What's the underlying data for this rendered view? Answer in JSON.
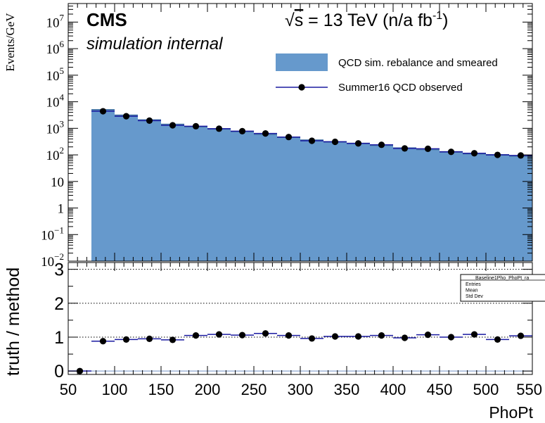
{
  "chart_data": [
    {
      "type": "bar",
      "ylabel": "Events/GeV",
      "y_scale": "log",
      "ylim": [
        0.01,
        50000000
      ],
      "xlim": [
        50,
        550
      ],
      "y_tick_labels": [
        {
          "value": 10000000,
          "base": "10",
          "exp": "7"
        },
        {
          "value": 1000000,
          "base": "10",
          "exp": "6"
        },
        {
          "value": 100000,
          "base": "10",
          "exp": "5"
        },
        {
          "value": 10000,
          "base": "10",
          "exp": "4"
        },
        {
          "value": 1000,
          "base": "10",
          "exp": "3"
        },
        {
          "value": 100,
          "base": "10",
          "exp": "2"
        },
        {
          "value": 10,
          "base": "10",
          "exp": ""
        },
        {
          "value": 1,
          "base": "1",
          "exp": ""
        },
        {
          "value": 0.1,
          "base": "10",
          "exp": "−1"
        },
        {
          "value": 0.01,
          "base": "10",
          "exp": "−2"
        }
      ],
      "cms_label": "CMS",
      "cms_sublabel": "simulation internal",
      "energy_label": {
        "sqrt": "√",
        "s_label": "s",
        "main": " = 13 TeV (n/a fb",
        "exp": "-1",
        "close": ")"
      },
      "legend_position": "top-right",
      "bin_edges": [
        75,
        100,
        125,
        150,
        175,
        200,
        225,
        250,
        275,
        300,
        325,
        350,
        375,
        400,
        425,
        450,
        475,
        500,
        525,
        550
      ],
      "series": [
        {
          "name": "QCD sim. rebalance and smeared",
          "kind": "histogram",
          "color": "#6699cc",
          "values": [
            5000,
            3100,
            2050,
            1400,
            1150,
            950,
            760,
            600,
            460,
            360,
            310,
            270,
            230,
            180,
            160,
            130,
            110,
            100,
            90
          ]
        },
        {
          "name": "Summer16 QCD observed",
          "kind": "points",
          "color": "#000000",
          "line_color": "#1a1aa0",
          "x": [
            87.5,
            112.5,
            137.5,
            162.5,
            187.5,
            212.5,
            237.5,
            262.5,
            287.5,
            312.5,
            337.5,
            362.5,
            387.5,
            412.5,
            437.5,
            462.5,
            487.5,
            512.5,
            537.5
          ],
          "values": [
            4400,
            2850,
            1950,
            1300,
            1200,
            970,
            780,
            640,
            470,
            340,
            310,
            270,
            240,
            175,
            170,
            130,
            115,
            100,
            95
          ]
        }
      ]
    },
    {
      "type": "scatter",
      "ylabel": "truth / method",
      "xlabel": "PhoPt",
      "xlim": [
        50,
        550
      ],
      "ylim": [
        -0.1,
        3.2
      ],
      "x_ticks": [
        50,
        100,
        150,
        200,
        250,
        300,
        350,
        400,
        450,
        500,
        550
      ],
      "y_ticks": [
        0,
        1,
        2,
        3
      ],
      "reference_lines": [
        1,
        2,
        3
      ],
      "series": [
        {
          "name": "",
          "x": [
            62.5,
            87.5,
            112.5,
            137.5,
            162.5,
            187.5,
            212.5,
            237.5,
            262.5,
            287.5,
            312.5,
            337.5,
            362.5,
            387.5,
            412.5,
            437.5,
            462.5,
            487.5,
            512.5,
            537.5
          ],
          "values": [
            0,
            0.88,
            0.93,
            0.95,
            0.92,
            1.05,
            1.08,
            1.06,
            1.11,
            1.05,
            0.96,
            1.02,
            1.02,
            1.05,
            0.98,
            1.07,
            1.0,
            1.08,
            0.93,
            1.04
          ]
        }
      ],
      "stats_box": {
        "title": "Baseline1Pho_PhoPt_ra",
        "rows": [
          "Entries",
          "Mean",
          "Std Dev"
        ]
      }
    }
  ]
}
